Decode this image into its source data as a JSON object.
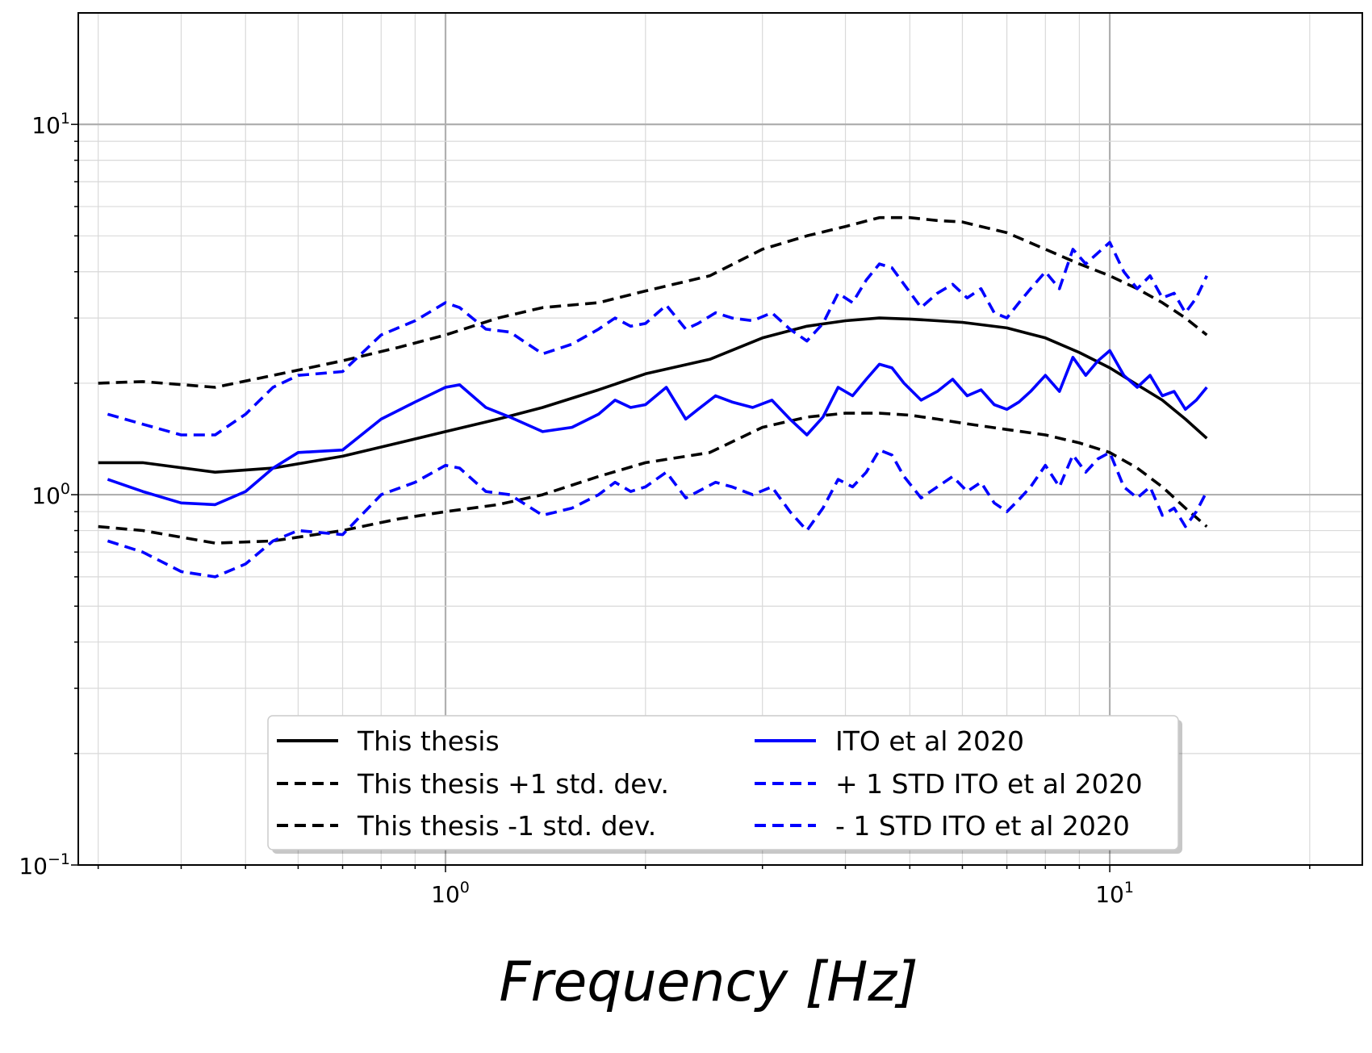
{
  "chart_data": {
    "type": "line",
    "title": "",
    "xlabel": "Frequency [Hz]",
    "ylabel": "",
    "xscale": "log",
    "yscale": "log",
    "xlim": [
      0.28,
      24
    ],
    "ylim": [
      0.1,
      20
    ],
    "grid": true,
    "legend_position": "lower-center",
    "x_tick_labels": [
      {
        "base": "10",
        "exp": "0",
        "value": 1
      },
      {
        "base": "10",
        "exp": "1",
        "value": 10
      }
    ],
    "y_tick_labels": [
      {
        "base": "10",
        "exp": "−1",
        "value": 0.1
      },
      {
        "base": "10",
        "exp": "0",
        "value": 1
      },
      {
        "base": "10",
        "exp": "1",
        "value": 10
      }
    ],
    "series": [
      {
        "name": "This thesis",
        "color": "#000000",
        "dash": "solid",
        "x": [
          0.3,
          0.35,
          0.45,
          0.55,
          0.7,
          0.85,
          1.0,
          1.2,
          1.4,
          1.7,
          2.0,
          2.5,
          3.0,
          3.5,
          4.0,
          4.5,
          5.0,
          5.5,
          6.0,
          7.0,
          8.0,
          9.0,
          10.0,
          11.0,
          12.0,
          13.0,
          14.0
        ],
        "y": [
          1.22,
          1.22,
          1.15,
          1.18,
          1.27,
          1.38,
          1.48,
          1.6,
          1.72,
          1.92,
          2.12,
          2.32,
          2.65,
          2.85,
          2.95,
          3.0,
          2.98,
          2.95,
          2.92,
          2.82,
          2.65,
          2.42,
          2.2,
          1.98,
          1.8,
          1.6,
          1.42
        ]
      },
      {
        "name": "This thesis +1 std. dev.",
        "color": "#000000",
        "dash": "dashed",
        "x": [
          0.3,
          0.35,
          0.45,
          0.55,
          0.7,
          0.85,
          1.0,
          1.2,
          1.4,
          1.7,
          2.0,
          2.5,
          3.0,
          3.5,
          4.0,
          4.5,
          5.0,
          5.5,
          6.0,
          7.0,
          8.0,
          9.0,
          10.0,
          11.0,
          12.0,
          13.0,
          14.0
        ],
        "y": [
          2.0,
          2.02,
          1.95,
          2.1,
          2.3,
          2.5,
          2.7,
          3.0,
          3.2,
          3.3,
          3.55,
          3.9,
          4.6,
          5.0,
          5.3,
          5.6,
          5.6,
          5.5,
          5.45,
          5.1,
          4.6,
          4.2,
          3.9,
          3.6,
          3.3,
          3.0,
          2.7
        ]
      },
      {
        "name": "This thesis -1 std. dev.",
        "color": "#000000",
        "dash": "dashed",
        "x": [
          0.3,
          0.35,
          0.45,
          0.55,
          0.7,
          0.85,
          1.0,
          1.2,
          1.4,
          1.7,
          2.0,
          2.5,
          3.0,
          3.5,
          4.0,
          4.5,
          5.0,
          5.5,
          6.0,
          7.0,
          8.0,
          9.0,
          10.0,
          11.0,
          12.0,
          13.0,
          14.0
        ],
        "y": [
          0.82,
          0.8,
          0.74,
          0.75,
          0.8,
          0.86,
          0.9,
          0.94,
          1.0,
          1.12,
          1.22,
          1.3,
          1.52,
          1.62,
          1.66,
          1.66,
          1.64,
          1.6,
          1.56,
          1.5,
          1.45,
          1.38,
          1.3,
          1.18,
          1.05,
          0.92,
          0.82
        ]
      },
      {
        "name": "ITO et al 2020",
        "color": "#0000ff",
        "dash": "solid",
        "x": [
          0.31,
          0.35,
          0.4,
          0.45,
          0.5,
          0.55,
          0.6,
          0.7,
          0.8,
          0.9,
          1.0,
          1.05,
          1.15,
          1.25,
          1.4,
          1.55,
          1.7,
          1.8,
          1.9,
          2.0,
          2.15,
          2.3,
          2.4,
          2.55,
          2.7,
          2.9,
          3.1,
          3.3,
          3.5,
          3.7,
          3.9,
          4.1,
          4.3,
          4.5,
          4.7,
          4.9,
          5.2,
          5.5,
          5.8,
          6.1,
          6.4,
          6.7,
          7.0,
          7.3,
          7.6,
          8.0,
          8.4,
          8.8,
          9.2,
          9.6,
          10.0,
          10.5,
          11.0,
          11.5,
          12.0,
          12.5,
          13.0,
          13.5,
          14.0
        ],
        "y": [
          1.1,
          1.02,
          0.95,
          0.94,
          1.02,
          1.18,
          1.3,
          1.32,
          1.6,
          1.78,
          1.95,
          1.98,
          1.72,
          1.62,
          1.48,
          1.52,
          1.65,
          1.8,
          1.72,
          1.75,
          1.95,
          1.6,
          1.7,
          1.85,
          1.78,
          1.72,
          1.8,
          1.6,
          1.45,
          1.62,
          1.95,
          1.85,
          2.05,
          2.25,
          2.2,
          2.0,
          1.8,
          1.9,
          2.05,
          1.85,
          1.92,
          1.75,
          1.7,
          1.78,
          1.9,
          2.1,
          1.9,
          2.35,
          2.1,
          2.3,
          2.45,
          2.1,
          1.95,
          2.1,
          1.85,
          1.9,
          1.7,
          1.8,
          1.95
        ]
      },
      {
        "name": "+ 1 STD ITO et al 2020",
        "color": "#0000ff",
        "dash": "dashed",
        "x": [
          0.31,
          0.35,
          0.4,
          0.45,
          0.5,
          0.55,
          0.6,
          0.7,
          0.8,
          0.9,
          1.0,
          1.05,
          1.15,
          1.25,
          1.4,
          1.55,
          1.7,
          1.8,
          1.9,
          2.0,
          2.15,
          2.3,
          2.4,
          2.55,
          2.7,
          2.9,
          3.1,
          3.3,
          3.5,
          3.7,
          3.9,
          4.1,
          4.3,
          4.5,
          4.7,
          4.9,
          5.2,
          5.5,
          5.8,
          6.1,
          6.4,
          6.7,
          7.0,
          7.3,
          7.6,
          8.0,
          8.4,
          8.8,
          9.2,
          9.6,
          10.0,
          10.5,
          11.0,
          11.5,
          12.0,
          12.5,
          13.0,
          13.5,
          14.0
        ],
        "y": [
          1.65,
          1.55,
          1.45,
          1.45,
          1.65,
          1.95,
          2.1,
          2.15,
          2.7,
          2.95,
          3.3,
          3.2,
          2.8,
          2.75,
          2.4,
          2.55,
          2.8,
          3.0,
          2.85,
          2.9,
          3.25,
          2.8,
          2.9,
          3.1,
          3.0,
          2.95,
          3.1,
          2.8,
          2.6,
          2.9,
          3.5,
          3.3,
          3.8,
          4.2,
          4.1,
          3.7,
          3.2,
          3.5,
          3.7,
          3.4,
          3.6,
          3.1,
          3.0,
          3.3,
          3.6,
          4.0,
          3.6,
          4.6,
          4.2,
          4.5,
          4.8,
          4.0,
          3.6,
          3.9,
          3.4,
          3.5,
          3.1,
          3.4,
          3.9
        ]
      },
      {
        "name": "- 1 STD ITO et al 2020",
        "color": "#0000ff",
        "dash": "dashed",
        "x": [
          0.31,
          0.35,
          0.4,
          0.45,
          0.5,
          0.55,
          0.6,
          0.7,
          0.8,
          0.9,
          1.0,
          1.05,
          1.15,
          1.25,
          1.4,
          1.55,
          1.7,
          1.8,
          1.9,
          2.0,
          2.15,
          2.3,
          2.4,
          2.55,
          2.7,
          2.9,
          3.1,
          3.3,
          3.5,
          3.7,
          3.9,
          4.1,
          4.3,
          4.5,
          4.7,
          4.9,
          5.2,
          5.5,
          5.8,
          6.1,
          6.4,
          6.7,
          7.0,
          7.3,
          7.6,
          8.0,
          8.4,
          8.8,
          9.2,
          9.6,
          10.0,
          10.5,
          11.0,
          11.5,
          12.0,
          12.5,
          13.0,
          13.5,
          14.0
        ],
        "y": [
          0.75,
          0.7,
          0.62,
          0.6,
          0.65,
          0.75,
          0.8,
          0.78,
          1.0,
          1.08,
          1.2,
          1.18,
          1.02,
          1.0,
          0.88,
          0.92,
          1.0,
          1.08,
          1.02,
          1.05,
          1.15,
          0.98,
          1.02,
          1.08,
          1.05,
          1.0,
          1.05,
          0.9,
          0.8,
          0.92,
          1.1,
          1.05,
          1.15,
          1.32,
          1.28,
          1.12,
          0.98,
          1.05,
          1.12,
          1.02,
          1.08,
          0.95,
          0.9,
          0.97,
          1.05,
          1.2,
          1.05,
          1.28,
          1.15,
          1.25,
          1.3,
          1.05,
          0.98,
          1.05,
          0.88,
          0.92,
          0.82,
          0.9,
          1.02
        ]
      }
    ]
  }
}
